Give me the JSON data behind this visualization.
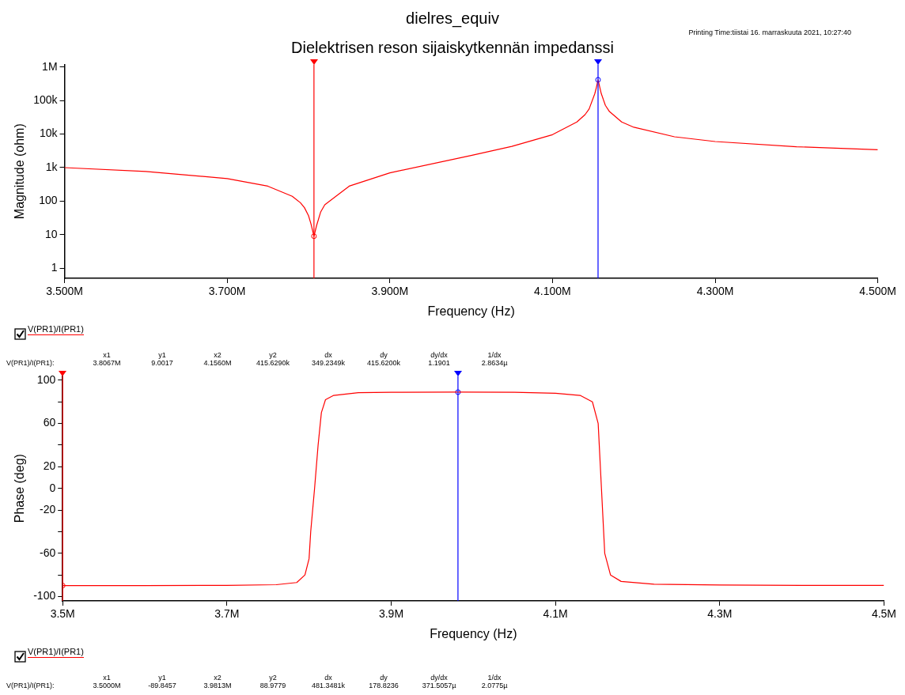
{
  "chart_data": [
    {
      "type": "line",
      "title": "dielres_equiv",
      "subtitle": "Dielektrisen reson sijaiskytkennän impedanssi",
      "xlabel": "Frequency (Hz)",
      "ylabel": "Magnitude (ohm)",
      "series": [
        {
          "name": "V(PR1)/I(PR1)",
          "color": "#ff0000",
          "marker": "none",
          "x": [
            3500000,
            3600000,
            3700000,
            3750000,
            3780000,
            3790000,
            3795000,
            3800000,
            3803000,
            3806700,
            3810000,
            3815000,
            3820000,
            3850000,
            3900000,
            4000000,
            4050000,
            4100000,
            4130000,
            4140000,
            4145000,
            4152000,
            4154000,
            4156000,
            4160000,
            4165000,
            4170000,
            4185000,
            4200000,
            4250000,
            4300000,
            4400000,
            4500000
          ],
          "values": [
            1000,
            770,
            470,
            280,
            140,
            90,
            64,
            37,
            21,
            9.0017,
            19,
            48,
            78,
            280,
            700,
            2300,
            4300,
            9600,
            23000,
            38000,
            56000,
            160000,
            250000,
            415629,
            160000,
            72000,
            47000,
            23000,
            16000,
            8300,
            6000,
            4200,
            3400
          ]
        },
        {
          "type": "scatter",
          "marker": "circle",
          "x": [
            3806700,
            4156000
          ],
          "values": [
            9.0017,
            415629
          ],
          "colors": [
            "#ff0000",
            "#0000ff"
          ]
        }
      ],
      "log": "y",
      "grid": false,
      "legend": "bottom left",
      "xlim": [
        3500000,
        4500000
      ],
      "xticks": [
        {
          "value": 3500000,
          "label": "3.500M"
        },
        {
          "value": 3700000,
          "label": "3.700M"
        },
        {
          "value": 3900000,
          "label": "3.900M"
        },
        {
          "value": 4100000,
          "label": "4.100M"
        },
        {
          "value": 4300000,
          "label": "4.300M"
        },
        {
          "value": 4500000,
          "label": "4.500M"
        }
      ],
      "ylim": [
        0.5,
        1200000
      ],
      "yticks": [
        1,
        10,
        100,
        {
          "value": 1000,
          "label": "1k"
        },
        {
          "value": 10000,
          "label": "10k"
        },
        {
          "value": 100000,
          "label": "100k"
        },
        {
          "value": 1000000,
          "label": "1M"
        }
      ],
      "ref_lines": [
        {
          "axis": "x",
          "value": 3806700,
          "color": "#ff0000"
        },
        {
          "axis": "x",
          "value": 4156000,
          "color": "#0000ff"
        }
      ],
      "annotations": [
        "Printing Time:tiistai 16. marraskuuta 2021, 10:27:40",
        "V(PR1)/I(PR1):",
        "x1",
        "3.8067M",
        "y1",
        "9.0017",
        "x2",
        "4.1560M",
        "y2",
        "415.6290k",
        "dx",
        "349.2349k",
        "dy",
        "415.6200k",
        "dy/dx",
        "1.1901",
        "1/dx",
        "2.8634µ"
      ]
    },
    {
      "type": "line",
      "xlabel": "Frequency (Hz)",
      "ylabel": "Phase (deg)",
      "series": [
        {
          "name": "V(PR1)/I(PR1)",
          "color": "#ff0000",
          "marker": "none",
          "x": [
            3500000,
            3600000,
            3700000,
            3760000,
            3785000,
            3795000,
            3800000,
            3802000,
            3806700,
            3811000,
            3815000,
            3820000,
            3830000,
            3860000,
            3900000,
            3981300,
            4050000,
            4100000,
            4130000,
            4145000,
            4152000,
            4156000,
            4160000,
            4167000,
            4180000,
            4220000,
            4300000,
            4400000,
            4500000
          ],
          "values": [
            -89.8457,
            -89.8,
            -89.6,
            -89,
            -87,
            -80,
            -65,
            -40,
            0,
            40,
            70,
            82,
            86,
            88.5,
            88.9,
            88.9779,
            88.8,
            88,
            86,
            80,
            60,
            0,
            -60,
            -80,
            -86,
            -88.5,
            -89.3,
            -89.6,
            -89.7
          ]
        },
        {
          "type": "scatter",
          "marker": "circle",
          "x": [
            3500000,
            3981300
          ],
          "values": [
            -89.8457,
            88.9779
          ],
          "colors": [
            "#ff0000",
            "#0000ff"
          ]
        }
      ],
      "grid": false,
      "legend": "bottom left",
      "xlim": [
        3500000,
        4500000
      ],
      "xticks": [
        {
          "value": 3500000,
          "label": "3.5M"
        },
        {
          "value": 3700000,
          "label": "3.7M"
        },
        {
          "value": 3900000,
          "label": "3.9M"
        },
        {
          "value": 4100000,
          "label": "4.1M"
        },
        {
          "value": 4300000,
          "label": "4.3M"
        },
        {
          "value": 4500000,
          "label": "4.5M"
        }
      ],
      "ylim": [
        -104,
        104
      ],
      "yticks": [
        -100,
        {
          "value": -80,
          "label": null
        },
        -60,
        {
          "value": -40,
          "label": null
        },
        -20,
        0,
        20,
        {
          "value": 40,
          "label": null
        },
        60,
        {
          "value": 80,
          "label": null
        },
        100
      ],
      "ref_lines": [
        {
          "axis": "x",
          "value": 3500000,
          "color": "#ff0000"
        },
        {
          "axis": "x",
          "value": 3981300,
          "color": "#0000ff"
        }
      ],
      "annotations": [
        "V(PR1)/I(PR1):",
        "x1",
        "3.5000M",
        "y1",
        "-89.8457",
        "x2",
        "3.9813M",
        "y2",
        "88.9779",
        "dx",
        "481.3481k",
        "dy",
        "178.8236",
        "dy/dx",
        "371.5057µ",
        "1/dx",
        "2.0775µ"
      ]
    }
  ]
}
